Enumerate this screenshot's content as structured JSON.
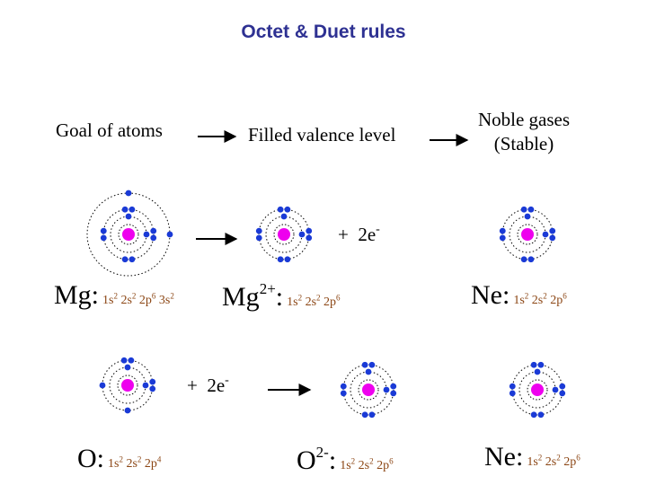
{
  "title": "Octet & Duet rules",
  "flow": {
    "goal": "Goal of atoms",
    "filled": "Filled valence level",
    "noble_line1": "Noble gases",
    "noble_line2": "(Stable)"
  },
  "colors": {
    "title": "#2e3192",
    "nucleus": "#ee00ee",
    "electron": "#1a3ad6",
    "config": "#8b4513"
  },
  "mg_row": {
    "mg_symbol": "Mg:",
    "mg_config": [
      "1s",
      "2",
      "2s",
      "2",
      "2p",
      "6",
      "3s",
      "2"
    ],
    "ion_symbol": "Mg",
    "ion_charge": "2+",
    "ion_colon": ":",
    "ion_config": [
      "1s",
      "2",
      "2s",
      "2",
      "2p",
      "6"
    ],
    "plus": "+",
    "electrons": "2e",
    "electrons_sup": "-",
    "ne_symbol": "Ne:",
    "ne_config": [
      "1s",
      "2",
      "2s",
      "2",
      "2p",
      "6"
    ]
  },
  "o_row": {
    "o_symbol": "O:",
    "o_config": [
      "1s",
      "2",
      "2s",
      "2",
      "2p",
      "4"
    ],
    "plus": "+",
    "electrons": "2e",
    "electrons_sup": "-",
    "ion_symbol": "O",
    "ion_charge": "2-",
    "ion_colon": ":",
    "ion_config": [
      "1s",
      "2",
      "2s",
      "2",
      "2p",
      "6"
    ],
    "ne_symbol": "Ne:",
    "ne_config": [
      "1s",
      "2",
      "2s",
      "2",
      "2p",
      "6"
    ]
  }
}
